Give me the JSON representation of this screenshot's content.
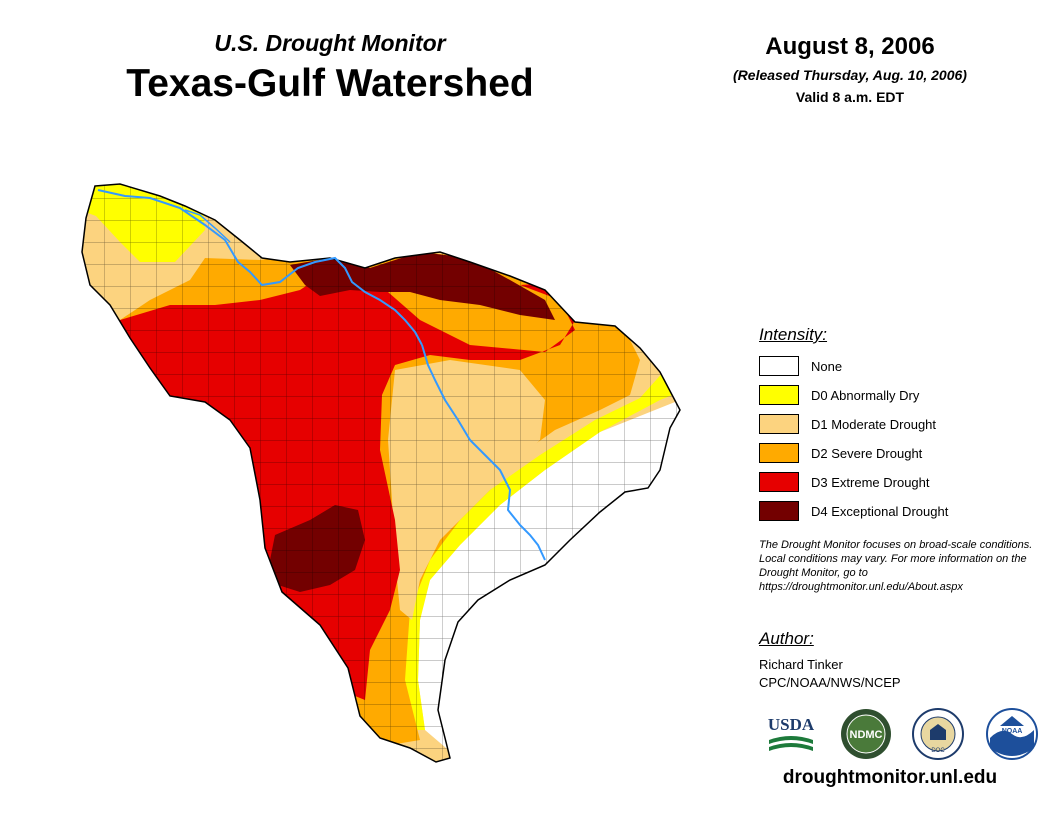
{
  "header": {
    "subtitle": "U.S. Drought Monitor",
    "title": "Texas-Gulf Watershed",
    "date": "August 8, 2006",
    "released": "(Released Thursday, Aug. 10, 2006)",
    "valid": "Valid 8 a.m. EDT"
  },
  "legend": {
    "heading": "Intensity:",
    "items": [
      {
        "label": "None",
        "color": "#ffffff"
      },
      {
        "label": "D0 Abnormally Dry",
        "color": "#ffff00"
      },
      {
        "label": "D1 Moderate Drought",
        "color": "#fcd37f"
      },
      {
        "label": "D2 Severe Drought",
        "color": "#ffaa00"
      },
      {
        "label": "D3 Extreme Drought",
        "color": "#e60000"
      },
      {
        "label": "D4 Exceptional Drought",
        "color": "#730000"
      }
    ]
  },
  "note": "The Drought Monitor focuses on broad-scale conditions. Local conditions may vary. For more information on the Drought Monitor, go to https://droughtmonitor.unl.edu/About.aspx",
  "author": {
    "heading": "Author:",
    "name": "Richard Tinker",
    "org": "CPC/NOAA/NWS/NCEP"
  },
  "logos": {
    "usda": "USDA",
    "ndmc": "NDMC",
    "doc": "DOC",
    "noaa": "NOAA"
  },
  "website": "droughtmonitor.unl.edu",
  "colors": {
    "river": "#3399ff",
    "county_line": "#000000"
  }
}
